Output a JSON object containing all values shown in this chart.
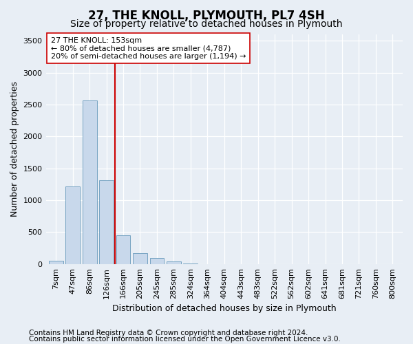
{
  "title": "27, THE KNOLL, PLYMOUTH, PL7 4SH",
  "subtitle": "Size of property relative to detached houses in Plymouth",
  "xlabel": "Distribution of detached houses by size in Plymouth",
  "ylabel": "Number of detached properties",
  "categories": [
    "7sqm",
    "47sqm",
    "86sqm",
    "126sqm",
    "166sqm",
    "205sqm",
    "245sqm",
    "285sqm",
    "324sqm",
    "364sqm",
    "404sqm",
    "443sqm",
    "483sqm",
    "522sqm",
    "562sqm",
    "602sqm",
    "641sqm",
    "681sqm",
    "721sqm",
    "760sqm",
    "800sqm"
  ],
  "values": [
    50,
    1220,
    2570,
    1310,
    450,
    175,
    100,
    40,
    5,
    0,
    0,
    0,
    0,
    0,
    0,
    0,
    0,
    0,
    0,
    0,
    0
  ],
  "bar_color": "#c8d8eb",
  "bar_edge_color": "#6699bb",
  "vline_color": "#cc0000",
  "annotation_line1": "27 THE KNOLL: 153sqm",
  "annotation_line2": "← 80% of detached houses are smaller (4,787)",
  "annotation_line3": "20% of semi-detached houses are larger (1,194) →",
  "annotation_box_color": "#ffffff",
  "annotation_box_edge": "#cc0000",
  "ylim": [
    0,
    3600
  ],
  "yticks": [
    0,
    500,
    1000,
    1500,
    2000,
    2500,
    3000,
    3500
  ],
  "background_color": "#e8eef5",
  "plot_bg_color": "#e8eef5",
  "footer_line1": "Contains HM Land Registry data © Crown copyright and database right 2024.",
  "footer_line2": "Contains public sector information licensed under the Open Government Licence v3.0.",
  "title_fontsize": 12,
  "subtitle_fontsize": 10,
  "label_fontsize": 9,
  "tick_fontsize": 8,
  "footer_fontsize": 7.5
}
